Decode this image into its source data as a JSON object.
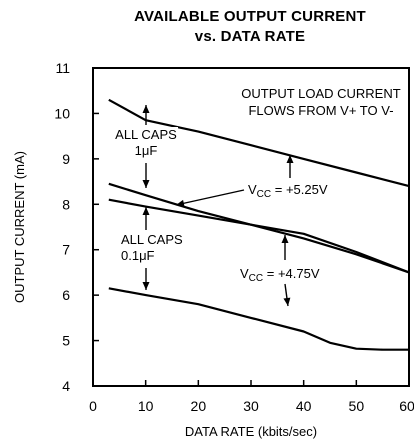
{
  "chart_data": {
    "type": "line",
    "title": "AVAILABLE OUTPUT CURRENT",
    "subtitle": "vs. DATA RATE",
    "xlabel": "DATA RATE (kbits/sec)",
    "ylabel": "OUTPUT CURRENT (mA)",
    "xlim": [
      0,
      60
    ],
    "ylim": [
      4,
      11
    ],
    "xticks": [
      0,
      10,
      20,
      30,
      40,
      50,
      60
    ],
    "yticks": [
      4,
      5,
      6,
      7,
      8,
      9,
      10,
      11
    ],
    "grid": false,
    "series": [
      {
        "x": [
          3,
          10,
          20,
          30,
          40,
          50,
          60
        ],
        "values": [
          10.3,
          9.85,
          9.6,
          9.3,
          9.0,
          8.7,
          8.4
        ]
      },
      {
        "x": [
          3,
          10,
          20,
          30,
          40,
          50,
          60
        ],
        "values": [
          8.45,
          8.2,
          7.85,
          7.55,
          7.25,
          6.9,
          6.5
        ]
      },
      {
        "x": [
          3,
          10,
          20,
          30,
          40,
          50,
          60
        ],
        "values": [
          8.1,
          7.95,
          7.75,
          7.55,
          7.35,
          6.95,
          6.5
        ]
      },
      {
        "x": [
          3,
          10,
          20,
          30,
          40,
          45,
          50,
          55,
          60
        ],
        "values": [
          6.15,
          6.0,
          5.8,
          5.5,
          5.2,
          4.95,
          4.82,
          4.8,
          4.8
        ]
      }
    ],
    "annotations": [
      {
        "id": "load",
        "lines": [
          "OUTPUT LOAD CURRENT",
          "FLOWS FROM V+ TO V-"
        ]
      },
      {
        "id": "caps1",
        "lines": [
          "ALL CAPS",
          "1μF"
        ]
      },
      {
        "id": "caps01",
        "lines": [
          "ALL CAPS",
          "0.1μF"
        ]
      },
      {
        "id": "vcc525",
        "prefix": "V",
        "sub": "CC",
        "suffix": " = +5.25V"
      },
      {
        "id": "vcc475",
        "prefix": "V",
        "sub": "CC",
        "suffix": " = +4.75V"
      }
    ]
  }
}
